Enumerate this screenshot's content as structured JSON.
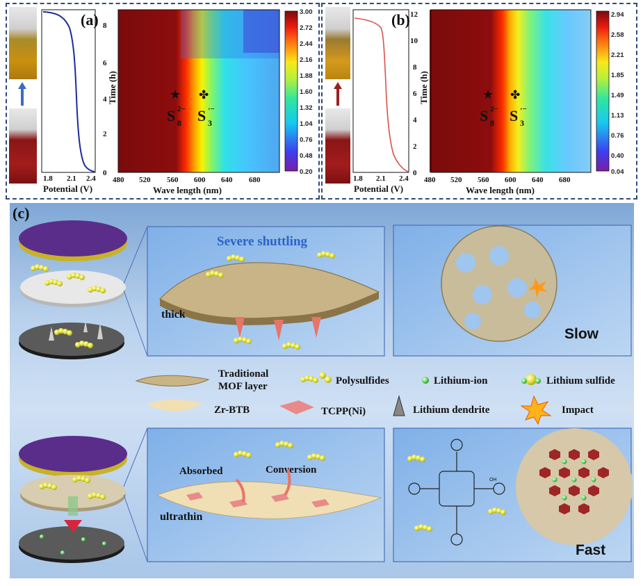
{
  "panel_a": {
    "label": "(a)",
    "curve_xlabel": "Potential (V)",
    "curve_xticks": [
      "1.8",
      "2.1",
      "2.4"
    ],
    "curve_yticks": [
      "0",
      "2",
      "4",
      "6",
      "8"
    ],
    "ylabel": "Time (h)",
    "map_xlabel": "Wave length (nm)",
    "map_xticks": [
      "480",
      "520",
      "560",
      "600",
      "640",
      "680"
    ],
    "colorbar_ticks": [
      "3.00",
      "2.72",
      "2.44",
      "2.16",
      "1.88",
      "1.60",
      "1.32",
      "1.04",
      "0.76",
      "0.48",
      "0.20"
    ],
    "marker1_symbol": "★",
    "marker2_symbol": "✤",
    "species1": "S",
    "species1_sub": "8",
    "species1_sup": "2−",
    "species2": "S",
    "species2_sub": "3",
    "species2_sup": "·−",
    "line_color": "#1a2b9a"
  },
  "panel_b": {
    "label": "(b)",
    "curve_xlabel": "Potential (V)",
    "curve_xticks": [
      "1.8",
      "2.1",
      "2.4"
    ],
    "curve_yticks": [
      "0",
      "2",
      "4",
      "6",
      "8",
      "10",
      "12"
    ],
    "ylabel": "Time (h)",
    "map_xlabel": "Wave length (nm)",
    "map_xticks": [
      "480",
      "520",
      "560",
      "600",
      "640",
      "680"
    ],
    "colorbar_ticks": [
      "2.94",
      "2.58",
      "2.21",
      "1.85",
      "1.49",
      "1.13",
      "0.76",
      "0.40",
      "0.04"
    ],
    "marker1_symbol": "★",
    "marker2_symbol": "✤",
    "species1": "S",
    "species1_sub": "8",
    "species1_sup": "2−",
    "species2": "S",
    "species2_sub": "3",
    "species2_sup": "·−",
    "line_color": "#d9524a"
  },
  "panel_c": {
    "label": "(c)",
    "top_title": "Severe shuttling",
    "top_layer_label": "thick",
    "top_result": "Slow",
    "bottom_layer_label": "ultrathin",
    "bottom_absorbed": "Absorbed",
    "bottom_conversion": "Conversion",
    "bottom_result": "Fast",
    "molecule_group": "OH",
    "legend": {
      "mof_layer_line1": "Traditional",
      "mof_layer_line2": "MOF layer",
      "polysulfides": "Polysulfides",
      "lithium_ion": "Lithium-ion",
      "lithium_sulfide": "Lithium sulfide",
      "zr_btb": "Zr-BTB",
      "tcpp": "TCPP(Ni)",
      "dendrite": "Lithium dendrite",
      "impact": "Impact"
    }
  }
}
